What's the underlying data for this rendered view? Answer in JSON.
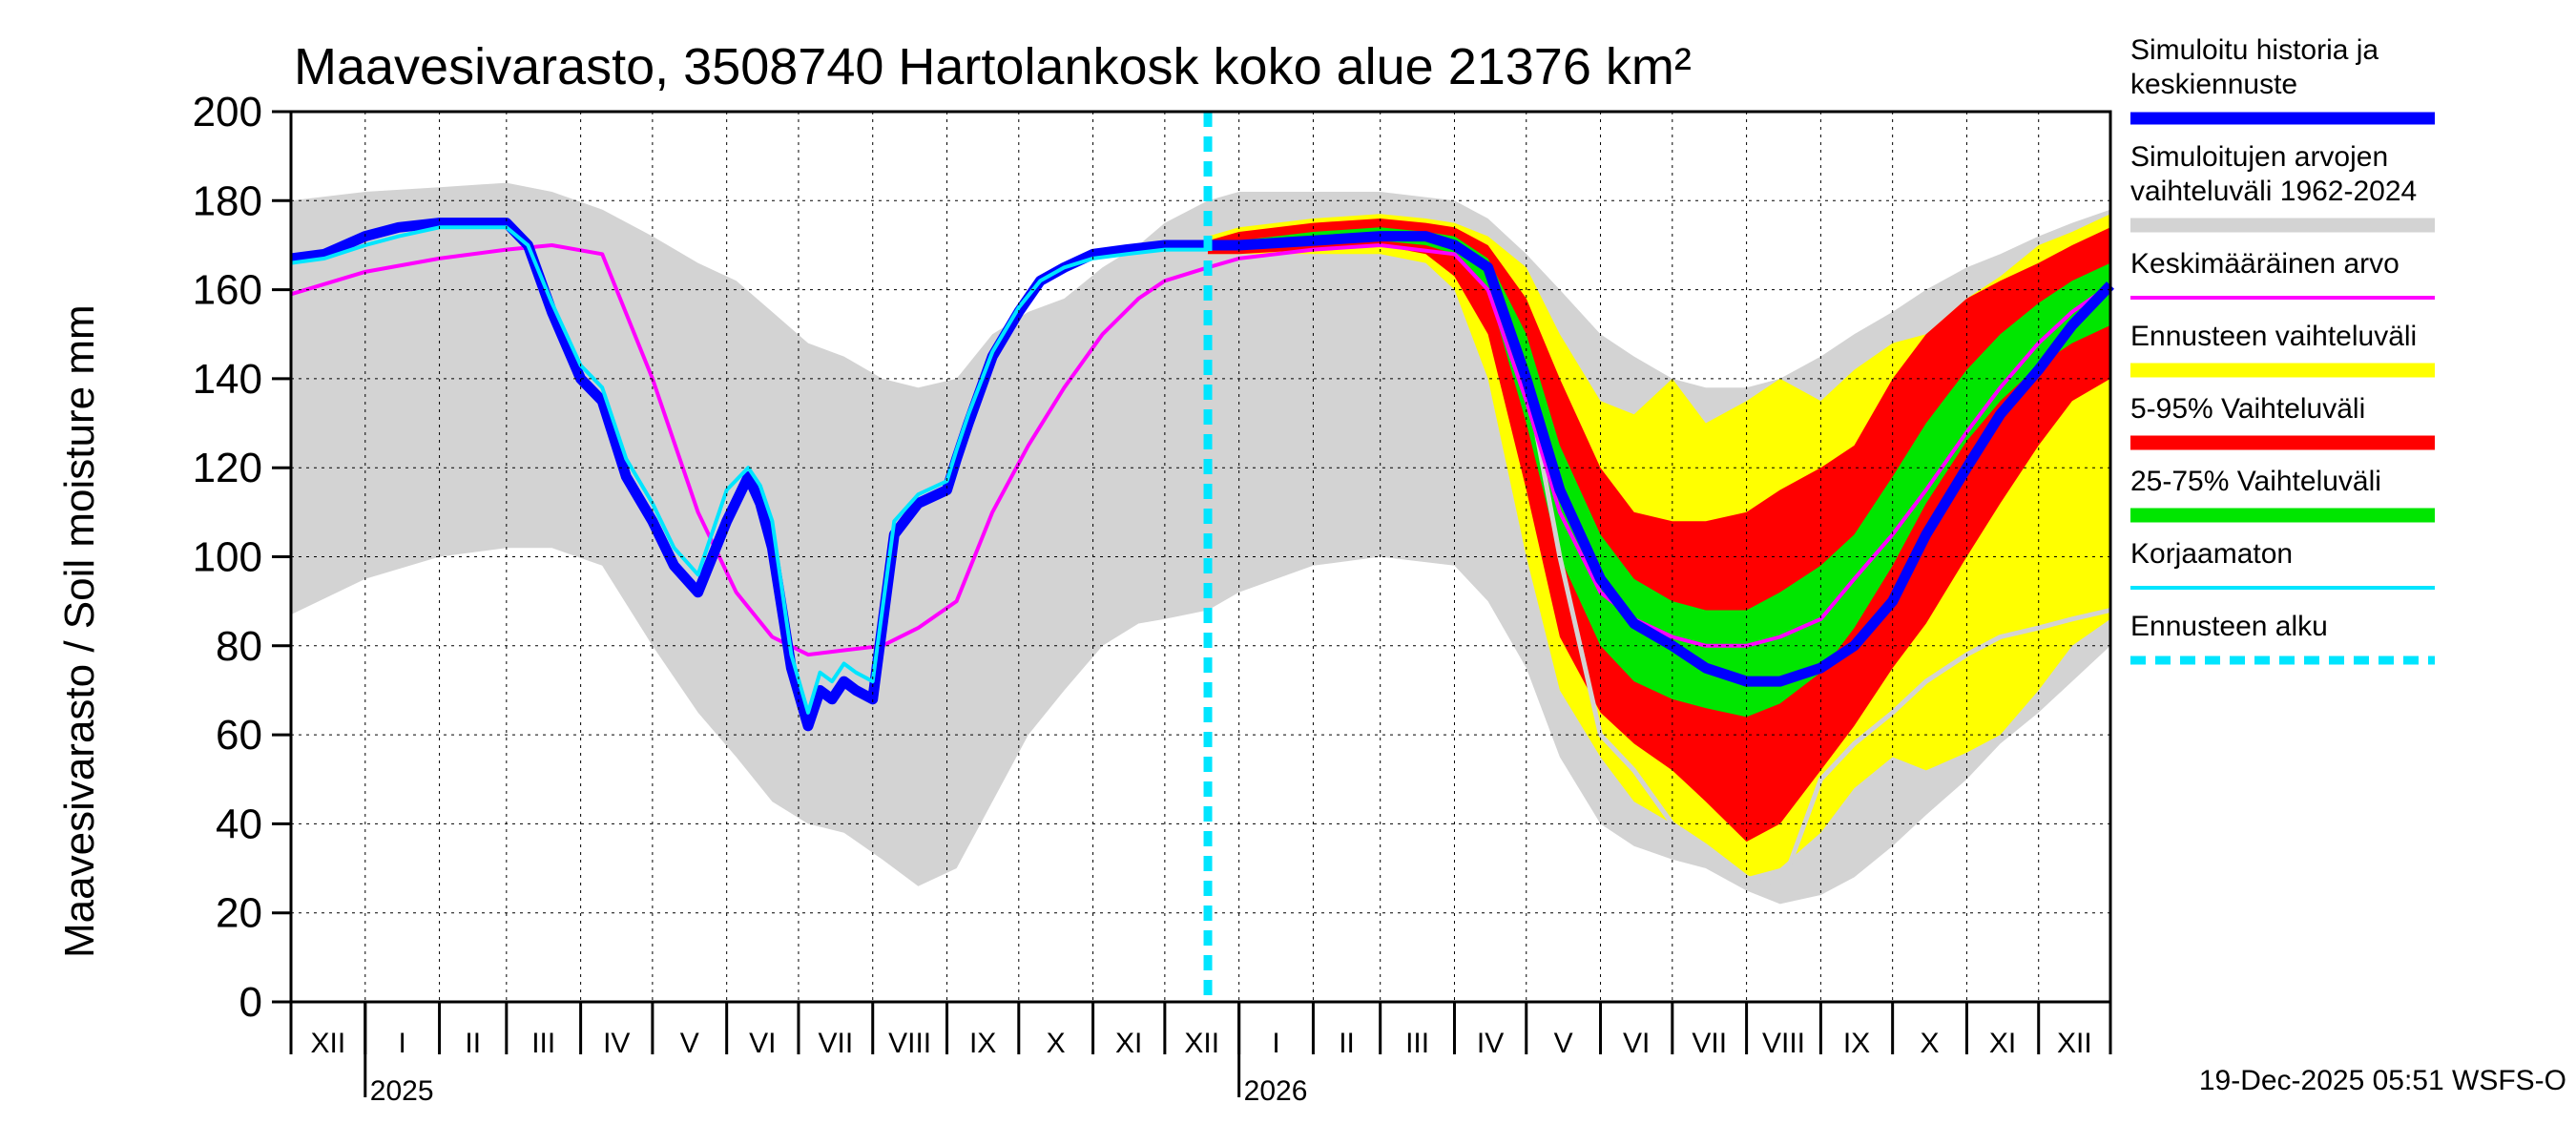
{
  "chart_data": {
    "type": "area",
    "title": "Maavesivarasto, 3508740 Hartolankosk koko alue 21376 km²",
    "ylabel": "Maavesivarasto / Soil moisture   mm",
    "xlabel": "",
    "ylim": [
      0,
      200
    ],
    "yticks": [
      0,
      20,
      40,
      60,
      80,
      100,
      120,
      140,
      160,
      180,
      200
    ],
    "xlim": [
      "2024-12-01",
      "2026-12-31"
    ],
    "forecast_start": "2025-12-19",
    "months": [
      {
        "label": "XII",
        "start": "2024-12-01",
        "end": "2025-01-01"
      },
      {
        "label": "I",
        "start": "2025-01-01",
        "end": "2025-02-01"
      },
      {
        "label": "II",
        "start": "2025-02-01",
        "end": "2025-03-01"
      },
      {
        "label": "III",
        "start": "2025-03-01",
        "end": "2025-04-01"
      },
      {
        "label": "IV",
        "start": "2025-04-01",
        "end": "2025-05-01"
      },
      {
        "label": "V",
        "start": "2025-05-01",
        "end": "2025-06-01"
      },
      {
        "label": "VI",
        "start": "2025-06-01",
        "end": "2025-07-01"
      },
      {
        "label": "VII",
        "start": "2025-07-01",
        "end": "2025-08-01"
      },
      {
        "label": "VIII",
        "start": "2025-08-01",
        "end": "2025-09-01"
      },
      {
        "label": "IX",
        "start": "2025-09-01",
        "end": "2025-10-01"
      },
      {
        "label": "X",
        "start": "2025-10-01",
        "end": "2025-11-01"
      },
      {
        "label": "XI",
        "start": "2025-11-01",
        "end": "2025-12-01"
      },
      {
        "label": "XII",
        "start": "2025-12-01",
        "end": "2026-01-01"
      },
      {
        "label": "I",
        "start": "2026-01-01",
        "end": "2026-02-01"
      },
      {
        "label": "II",
        "start": "2026-02-01",
        "end": "2026-03-01"
      },
      {
        "label": "III",
        "start": "2026-03-01",
        "end": "2026-04-01"
      },
      {
        "label": "IV",
        "start": "2026-04-01",
        "end": "2026-05-01"
      },
      {
        "label": "V",
        "start": "2026-05-01",
        "end": "2026-06-01"
      },
      {
        "label": "VI",
        "start": "2026-06-01",
        "end": "2026-07-01"
      },
      {
        "label": "VII",
        "start": "2026-07-01",
        "end": "2026-08-01"
      },
      {
        "label": "VIII",
        "start": "2026-08-01",
        "end": "2026-09-01"
      },
      {
        "label": "IX",
        "start": "2026-09-01",
        "end": "2026-10-01"
      },
      {
        "label": "X",
        "start": "2026-10-01",
        "end": "2026-11-01"
      },
      {
        "label": "XI",
        "start": "2026-11-01",
        "end": "2026-12-01"
      },
      {
        "label": "XII",
        "start": "2026-12-01",
        "end": "2026-12-31"
      }
    ],
    "years": [
      {
        "label": "2025",
        "date": "2025-01-01"
      },
      {
        "label": "2026",
        "date": "2026-01-01"
      }
    ],
    "colors": {
      "history_range": "#d3d3d3",
      "forecast_range": "#ffff00",
      "p5_95": "#ff0000",
      "p25_75": "#00e600",
      "simulated": "#0000ff",
      "uncorrected": "#00e5ff",
      "mean": "#ff00ff",
      "forecast_start": "#00e5ff",
      "grid": "#000000"
    },
    "series": [
      {
        "name": "history_range",
        "kind": "band",
        "x": [
          "2024-12-01",
          "2025-01-01",
          "2025-02-01",
          "2025-03-01",
          "2025-03-20",
          "2025-04-10",
          "2025-05-01",
          "2025-05-20",
          "2025-06-05",
          "2025-06-20",
          "2025-07-05",
          "2025-07-20",
          "2025-08-05",
          "2025-08-20",
          "2025-09-05",
          "2025-09-20",
          "2025-10-05",
          "2025-10-20",
          "2025-11-05",
          "2025-11-20",
          "2025-12-01",
          "2025-12-19",
          "2026-01-01",
          "2026-02-01",
          "2026-03-01",
          "2026-04-01",
          "2026-04-15",
          "2026-05-01",
          "2026-05-15",
          "2026-06-01",
          "2026-06-15",
          "2026-07-01",
          "2026-07-15",
          "2026-08-01",
          "2026-08-15",
          "2026-09-01",
          "2026-09-15",
          "2026-10-01",
          "2026-10-15",
          "2026-11-01",
          "2026-11-15",
          "2026-12-01",
          "2026-12-15",
          "2026-12-31"
        ],
        "low": [
          87,
          95,
          100,
          102,
          102,
          98,
          80,
          65,
          55,
          45,
          40,
          38,
          32,
          26,
          30,
          45,
          60,
          70,
          80,
          85,
          86,
          88,
          92,
          98,
          100,
          98,
          90,
          75,
          55,
          40,
          35,
          32,
          30,
          25,
          22,
          24,
          28,
          35,
          42,
          50,
          58,
          65,
          72,
          80
        ],
        "high": [
          180,
          182,
          183,
          184,
          182,
          178,
          172,
          166,
          162,
          155,
          148,
          145,
          140,
          138,
          140,
          150,
          155,
          158,
          165,
          170,
          175,
          180,
          182,
          182,
          182,
          180,
          176,
          168,
          160,
          150,
          145,
          140,
          138,
          138,
          140,
          145,
          150,
          155,
          160,
          165,
          168,
          172,
          175,
          178
        ]
      },
      {
        "name": "forecast_range",
        "kind": "band",
        "x": [
          "2025-12-19",
          "2026-01-01",
          "2026-02-01",
          "2026-03-01",
          "2026-03-20",
          "2026-04-01",
          "2026-04-15",
          "2026-05-01",
          "2026-05-15",
          "2026-06-01",
          "2026-06-15",
          "2026-07-01",
          "2026-07-15",
          "2026-08-01",
          "2026-08-15",
          "2026-09-01",
          "2026-09-15",
          "2026-10-01",
          "2026-10-15",
          "2026-11-01",
          "2026-11-15",
          "2026-12-01",
          "2026-12-15",
          "2026-12-31"
        ],
        "low": [
          168,
          168,
          168,
          168,
          166,
          160,
          140,
          100,
          70,
          55,
          45,
          40,
          35,
          28,
          30,
          38,
          48,
          55,
          52,
          56,
          60,
          70,
          80,
          86
        ],
        "high": [
          172,
          174,
          176,
          177,
          176,
          175,
          172,
          165,
          150,
          135,
          132,
          140,
          130,
          135,
          140,
          135,
          142,
          148,
          150,
          158,
          163,
          170,
          173,
          177
        ]
      },
      {
        "name": "p5_95",
        "kind": "band",
        "x": [
          "2025-12-19",
          "2026-01-01",
          "2026-02-01",
          "2026-03-01",
          "2026-03-20",
          "2026-04-01",
          "2026-04-15",
          "2026-05-01",
          "2026-05-15",
          "2026-06-01",
          "2026-06-15",
          "2026-07-01",
          "2026-07-15",
          "2026-08-01",
          "2026-08-15",
          "2026-09-01",
          "2026-09-15",
          "2026-10-01",
          "2026-10-15",
          "2026-11-01",
          "2026-11-15",
          "2026-12-01",
          "2026-12-15",
          "2026-12-31"
        ],
        "low": [
          168,
          168,
          169,
          170,
          168,
          163,
          150,
          115,
          82,
          65,
          58,
          52,
          45,
          36,
          40,
          52,
          62,
          75,
          85,
          100,
          112,
          125,
          135,
          140
        ],
        "high": [
          171,
          173,
          175,
          176,
          175,
          174,
          170,
          158,
          140,
          120,
          110,
          108,
          108,
          110,
          115,
          120,
          125,
          140,
          150,
          158,
          162,
          166,
          170,
          174
        ]
      },
      {
        "name": "p25_75",
        "kind": "band",
        "x": [
          "2025-12-19",
          "2026-01-01",
          "2026-02-01",
          "2026-03-01",
          "2026-03-20",
          "2026-04-01",
          "2026-04-15",
          "2026-05-01",
          "2026-05-15",
          "2026-06-01",
          "2026-06-15",
          "2026-07-01",
          "2026-07-15",
          "2026-08-01",
          "2026-08-15",
          "2026-09-01",
          "2026-09-15",
          "2026-10-01",
          "2026-10-15",
          "2026-11-01",
          "2026-11-15",
          "2026-12-01",
          "2026-12-15",
          "2026-12-31"
        ],
        "low": [
          169,
          169,
          170,
          171,
          170,
          168,
          160,
          130,
          100,
          80,
          72,
          68,
          66,
          64,
          67,
          74,
          84,
          98,
          112,
          126,
          135,
          143,
          148,
          152
        ],
        "high": [
          170,
          171,
          173,
          174,
          173,
          172,
          167,
          150,
          125,
          105,
          95,
          90,
          88,
          88,
          92,
          98,
          105,
          118,
          130,
          142,
          150,
          157,
          162,
          166
        ]
      },
      {
        "name": "mean",
        "kind": "line",
        "x": [
          "2024-12-01",
          "2025-01-01",
          "2025-02-01",
          "2025-03-01",
          "2025-03-20",
          "2025-04-10",
          "2025-05-01",
          "2025-05-20",
          "2025-06-05",
          "2025-06-20",
          "2025-07-05",
          "2025-07-20",
          "2025-08-05",
          "2025-08-20",
          "2025-09-05",
          "2025-09-20",
          "2025-10-05",
          "2025-10-20",
          "2025-11-05",
          "2025-11-20",
          "2025-12-01",
          "2025-12-19",
          "2026-01-01",
          "2026-02-01",
          "2026-03-01",
          "2026-04-01",
          "2026-04-15",
          "2026-05-01",
          "2026-05-15",
          "2026-06-01",
          "2026-06-15",
          "2026-07-01",
          "2026-07-15",
          "2026-08-01",
          "2026-08-15",
          "2026-09-01",
          "2026-09-15",
          "2026-10-01",
          "2026-10-15",
          "2026-11-01",
          "2026-11-15",
          "2026-12-01",
          "2026-12-15",
          "2026-12-31"
        ],
        "y": [
          159,
          164,
          167,
          169,
          170,
          168,
          140,
          110,
          92,
          82,
          78,
          79,
          80,
          84,
          90,
          110,
          125,
          138,
          150,
          158,
          162,
          165,
          167,
          169,
          170,
          168,
          160,
          135,
          110,
          92,
          86,
          82,
          80,
          80,
          82,
          86,
          95,
          105,
          115,
          128,
          138,
          148,
          155,
          161
        ]
      },
      {
        "name": "simulated",
        "kind": "line",
        "x": [
          "2024-12-01",
          "2024-12-15",
          "2025-01-01",
          "2025-01-15",
          "2025-02-01",
          "2025-02-15",
          "2025-03-01",
          "2025-03-10",
          "2025-03-20",
          "2025-04-01",
          "2025-04-10",
          "2025-04-20",
          "2025-05-01",
          "2025-05-10",
          "2025-05-20",
          "2025-06-01",
          "2025-06-10",
          "2025-06-15",
          "2025-06-20",
          "2025-06-28",
          "2025-07-05",
          "2025-07-10",
          "2025-07-15",
          "2025-07-20",
          "2025-07-25",
          "2025-08-01",
          "2025-08-10",
          "2025-08-20",
          "2025-09-01",
          "2025-09-05",
          "2025-09-10",
          "2025-09-20",
          "2025-10-01",
          "2025-10-10",
          "2025-10-20",
          "2025-11-01",
          "2025-11-15",
          "2025-12-01",
          "2025-12-10",
          "2025-12-19",
          "2026-01-01",
          "2026-02-01",
          "2026-03-01",
          "2026-03-20",
          "2026-04-01",
          "2026-04-15",
          "2026-05-01",
          "2026-05-15",
          "2026-06-01",
          "2026-06-15",
          "2026-07-01",
          "2026-07-15",
          "2026-08-01",
          "2026-08-15",
          "2026-09-01",
          "2026-09-15",
          "2026-10-01",
          "2026-10-15",
          "2026-11-01",
          "2026-11-15",
          "2026-12-01",
          "2026-12-15",
          "2026-12-31"
        ],
        "y": [
          167,
          168,
          172,
          174,
          175,
          175,
          175,
          170,
          155,
          140,
          135,
          118,
          108,
          98,
          92,
          108,
          118,
          112,
          102,
          75,
          62,
          70,
          68,
          72,
          70,
          68,
          105,
          112,
          115,
          122,
          130,
          145,
          155,
          162,
          165,
          168,
          169,
          170,
          170,
          170,
          170,
          171,
          172,
          172,
          170,
          165,
          140,
          115,
          95,
          85,
          80,
          75,
          72,
          72,
          75,
          80,
          90,
          105,
          120,
          132,
          142,
          152,
          161
        ]
      },
      {
        "name": "uncorrected",
        "kind": "line",
        "x": [
          "2024-12-01",
          "2024-12-15",
          "2025-01-01",
          "2025-01-15",
          "2025-02-01",
          "2025-02-15",
          "2025-03-01",
          "2025-03-10",
          "2025-03-20",
          "2025-04-01",
          "2025-04-10",
          "2025-04-20",
          "2025-05-01",
          "2025-05-10",
          "2025-05-20",
          "2025-06-01",
          "2025-06-10",
          "2025-06-15",
          "2025-06-20",
          "2025-06-28",
          "2025-07-05",
          "2025-07-10",
          "2025-07-15",
          "2025-07-20",
          "2025-07-25",
          "2025-08-01",
          "2025-08-10",
          "2025-08-20",
          "2025-09-01",
          "2025-09-05",
          "2025-09-10",
          "2025-09-20",
          "2025-10-01",
          "2025-10-10",
          "2025-10-20",
          "2025-11-01",
          "2025-11-15",
          "2025-12-01",
          "2025-12-10",
          "2025-12-19"
        ],
        "y": [
          166,
          167,
          170,
          172,
          174,
          174,
          174,
          170,
          157,
          143,
          138,
          122,
          112,
          102,
          96,
          115,
          120,
          116,
          108,
          78,
          65,
          74,
          72,
          76,
          74,
          72,
          108,
          114,
          117,
          124,
          132,
          146,
          156,
          162,
          165,
          167,
          168,
          169,
          169,
          169
        ]
      },
      {
        "name": "history_min",
        "kind": "line",
        "x": [
          "2026-04-15",
          "2026-05-01",
          "2026-05-15",
          "2026-06-01",
          "2026-06-15",
          "2026-07-01",
          "2026-07-15",
          "2026-08-01",
          "2026-08-15",
          "2026-09-01",
          "2026-09-15",
          "2026-10-01",
          "2026-10-15",
          "2026-11-01",
          "2026-11-15",
          "2026-12-01",
          "2026-12-15",
          "2026-12-31"
        ],
        "y": [
          165,
          140,
          100,
          60,
          52,
          40,
          35,
          28,
          25,
          50,
          58,
          65,
          72,
          78,
          82,
          84,
          86,
          88
        ]
      }
    ],
    "legend": [
      {
        "label": "Simuloitu historia ja keskiennuste",
        "swatch": "simulated",
        "style": "thick"
      },
      {
        "label": "Simuloitujen arvojen vaihteluväli 1962-2024",
        "swatch": "history_range",
        "style": "band"
      },
      {
        "label": "Keskimääräinen arvo",
        "swatch": "mean",
        "style": "thin"
      },
      {
        "label": "Ennusteen vaihteluväli",
        "swatch": "forecast_range",
        "style": "band"
      },
      {
        "label": "5-95% Vaihteluväli",
        "swatch": "p5_95",
        "style": "band"
      },
      {
        "label": "25-75% Vaihteluväli",
        "swatch": "p25_75",
        "style": "band"
      },
      {
        "label": "Korjaamaton",
        "swatch": "uncorrected",
        "style": "thin"
      },
      {
        "label": "Ennusteen alku",
        "swatch": "forecast_start",
        "style": "dashed"
      }
    ],
    "footer": "19-Dec-2025 05:51 WSFS-O"
  }
}
